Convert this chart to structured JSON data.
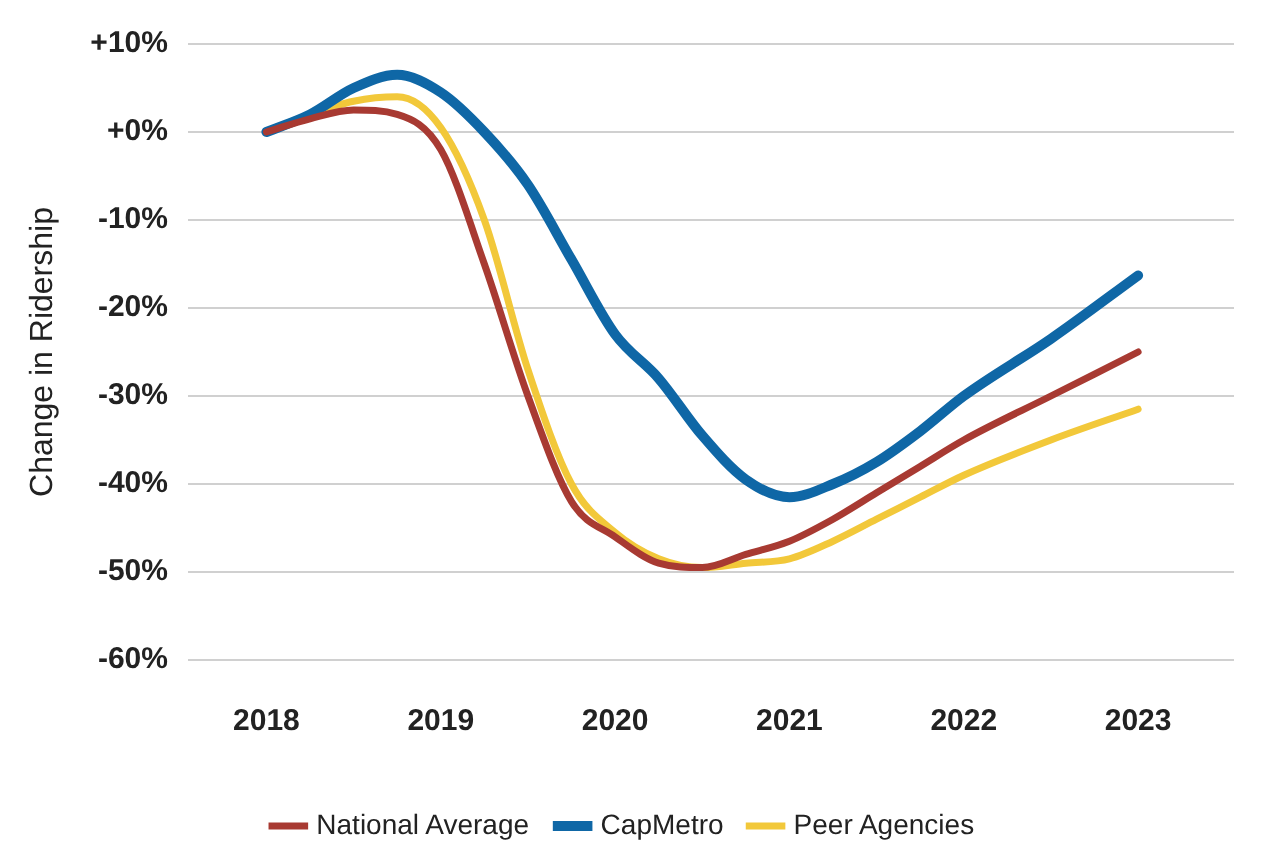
{
  "chart_data": {
    "type": "line",
    "ylabel": "Change in Ridership",
    "x": [
      2018,
      2018.25,
      2018.5,
      2018.75,
      2019,
      2019.25,
      2019.5,
      2019.75,
      2020,
      2020.25,
      2020.5,
      2020.75,
      2021,
      2021.25,
      2021.5,
      2021.75,
      2022,
      2022.5,
      2023
    ],
    "series": [
      {
        "name": "National Average",
        "color": "#a83a32",
        "values": [
          0,
          1.5,
          2.5,
          2,
          -2,
          -15,
          -30,
          -42,
          -46,
          -49,
          -49.5,
          -48,
          -46.5,
          -44,
          -41,
          -38,
          -35,
          -30,
          -25
        ]
      },
      {
        "name": "CapMetro",
        "color": "#0f67a6",
        "values": [
          0,
          2,
          5,
          6.5,
          4.5,
          0,
          -6,
          -14.5,
          -23,
          -28,
          -34.5,
          -39.5,
          -41.5,
          -40,
          -37.5,
          -34,
          -30,
          -23.5,
          -16.3
        ]
      },
      {
        "name": "Peer Agencies",
        "color": "#f2c83a",
        "values": [
          0,
          2,
          3.5,
          4,
          0.5,
          -10,
          -27,
          -40,
          -45.5,
          -48.5,
          -49.5,
          -49,
          -48.5,
          -46.5,
          -44,
          -41.5,
          -39,
          -35,
          -31.5
        ]
      }
    ],
    "xlim": [
      2017.55,
      2023.55
    ],
    "xticks": [
      2018,
      2019,
      2020,
      2021,
      2022,
      2023
    ],
    "ylim": [
      -60,
      10
    ],
    "yticks": [
      {
        "value": 10,
        "label": "+10%"
      },
      {
        "value": 0,
        "label": "+0%"
      },
      {
        "value": -10,
        "label": "-10%"
      },
      {
        "value": -20,
        "label": "-20%"
      },
      {
        "value": -30,
        "label": "-30%"
      },
      {
        "value": -40,
        "label": "-40%"
      },
      {
        "value": -50,
        "label": "-50%"
      },
      {
        "value": -60,
        "label": "-60%"
      }
    ],
    "grid": "y",
    "legend": "bottom",
    "marker": "none",
    "line_style": "solid"
  }
}
